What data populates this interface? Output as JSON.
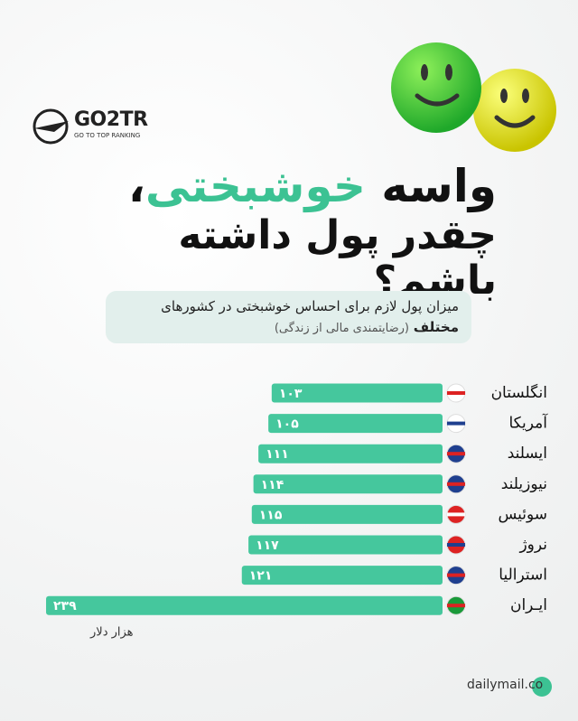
{
  "header": {
    "logo": "GO2TR",
    "logo_tagline": "GO TO TOP RANKING",
    "title_prefix": "واسه",
    "title_highlight": "خوشبختی",
    "title_suffix": "،",
    "title_line2": "چقدر پول داشته باشم؟",
    "subtitle_line1": "میزان پول لازم برای احساس خوشبختی در کشورهای",
    "subtitle_line2": "مختلف",
    "subtitle_note": "(رضایتمندی مالی از زندگی)"
  },
  "chart_data": {
    "type": "bar",
    "orientation": "horizontal",
    "categories": [
      "انگلستان",
      "آمریکا",
      "ایسلند",
      "نیوزیلند",
      "سوئیس",
      "نروژ",
      "استرالیا",
      "ایـران"
    ],
    "values": [
      103,
      105,
      111,
      114,
      115,
      117,
      121,
      239
    ],
    "value_labels": [
      "۱۰۳",
      "۱۰۵",
      "۱۱۱",
      "۱۱۴",
      "۱۱۵",
      "۱۱۷",
      "۱۲۱",
      "۲۳۹"
    ],
    "color": "#45c79d",
    "unit_label": "هزار دلار",
    "xlim": [
      0,
      245
    ]
  },
  "footer": {
    "source": "dailymail.co"
  }
}
